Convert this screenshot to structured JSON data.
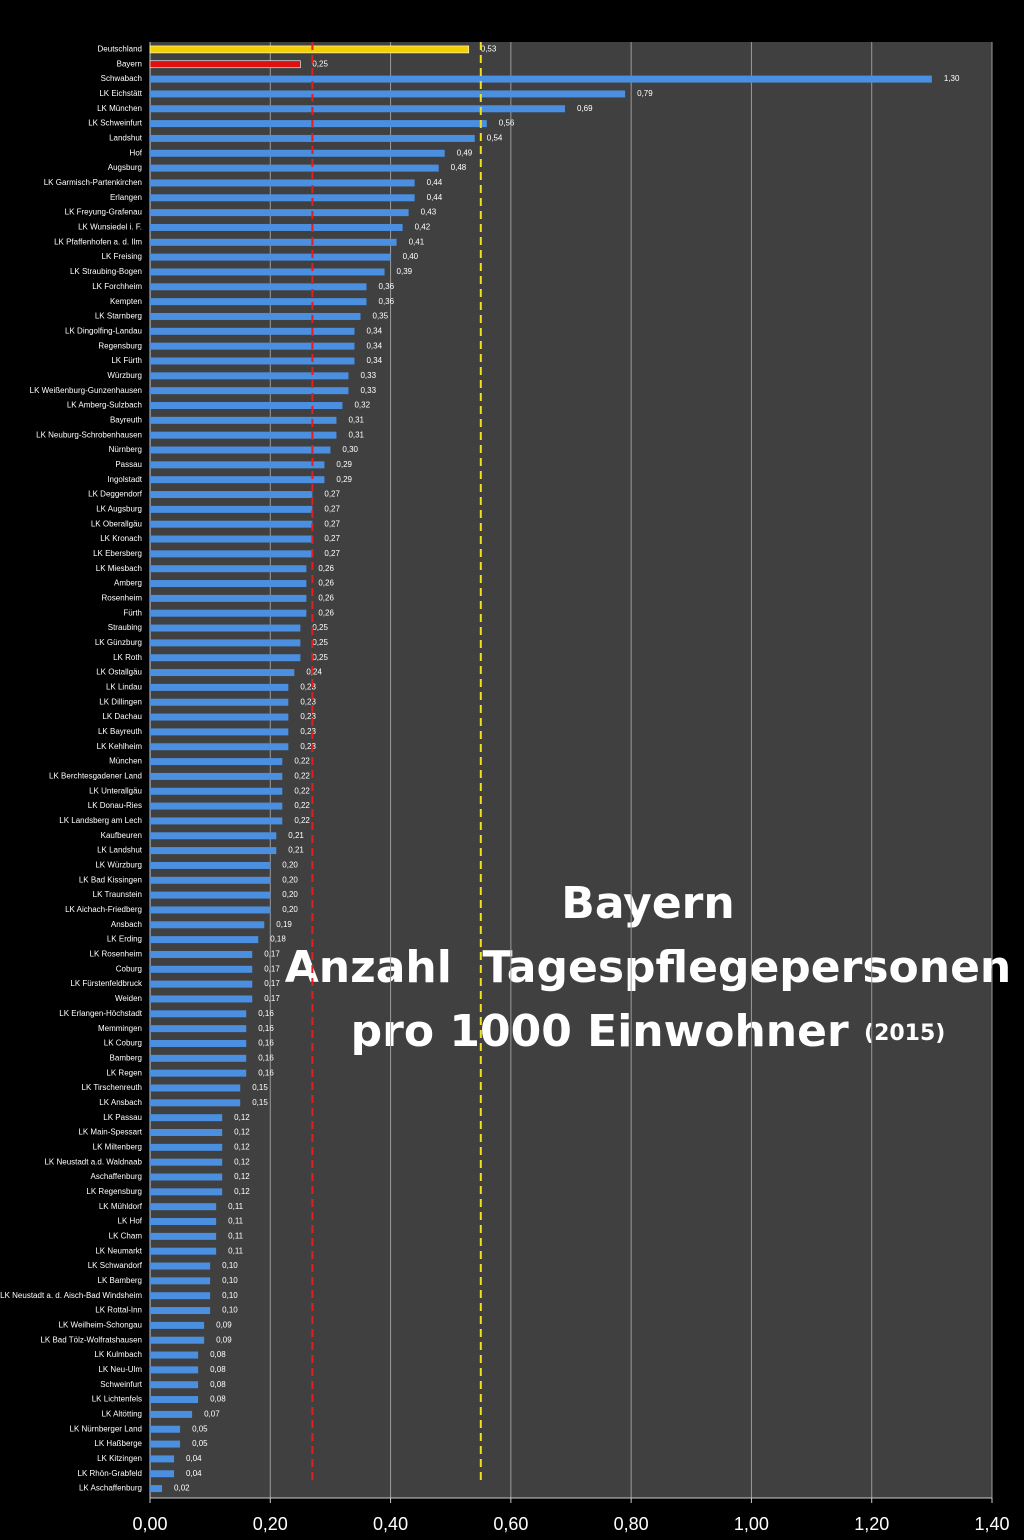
{
  "chart_data": {
    "type": "hbar",
    "title": [
      "Bayern",
      "Anzahl  Tagespflegepersonen",
      "pro 1000 Einwohner"
    ],
    "subtitle": "(2015)",
    "categories": [
      "Deutschland",
      "Bayern",
      "Schwabach",
      "LK Eichstätt",
      "LK München",
      "LK Schweinfurt",
      "Landshut",
      "Hof",
      "Augsburg",
      "LK Garmisch-Partenkirchen",
      "Erlangen",
      "LK Freyung-Grafenau",
      "LK Wunsiedel i. F.",
      "LK Pfaffenhofen a. d. Ilm",
      "LK Freising",
      "LK Straubing-Bogen",
      "LK Forchheim",
      "Kempten",
      "LK Starnberg",
      "LK Dingolfing-Landau",
      "Regensburg",
      "LK Fürth",
      "Würzburg",
      "LK Weißenburg-Gunzenhausen",
      "LK Amberg-Sulzbach",
      "Bayreuth",
      "LK Neuburg-Schrobenhausen",
      "Nürnberg",
      "Passau",
      "Ingolstadt",
      "LK Deggendorf",
      "LK Augsburg",
      "LK Oberallgäu",
      "LK Kronach",
      "LK Ebersberg",
      "LK Miesbach",
      "Amberg",
      "Rosenheim",
      "Fürth",
      "Straubing",
      "LK Günzburg",
      "LK Roth",
      "LK Ostallgäu",
      "LK Lindau",
      "LK Dillingen",
      "LK Dachau",
      "LK Bayreuth",
      "LK Kehlheim",
      "München",
      "LK Berchtesgadener Land",
      "LK Unterallgäu",
      "LK Donau-Ries",
      "LK Landsberg am Lech",
      "Kaufbeuren",
      "LK Landshut",
      "LK Würzburg",
      "LK Bad Kissingen",
      "LK Traunstein",
      "LK Aichach-Friedberg",
      "Ansbach",
      "LK Erding",
      "LK Rosenheim",
      "Coburg",
      "LK Fürstenfeldbruck",
      "Weiden",
      "LK Erlangen-Höchstadt",
      "Memmingen",
      "LK Coburg",
      "Bamberg",
      "LK Regen",
      "LK Tirschenreuth",
      "LK Ansbach",
      "LK Passau",
      "LK Main-Spessart",
      "LK Miltenberg",
      "LK Neustadt a.d. Waldnaab",
      "Aschaffenburg",
      "LK Regensburg",
      "LK Mühldorf",
      "LK Hof",
      "LK Cham",
      "LK Neumarkt",
      "LK Schwandorf",
      "LK Bamberg",
      "LK Neustadt a. d. Aisch-Bad Windsheim",
      "LK  Rottal-Inn",
      "LK Weilheim-Schongau",
      "LK Bad Tölz-Wolfratshausen",
      "LK Kulmbach",
      "LK Neu-Ulm",
      "Schweinfurt",
      "LK Lichtenfels",
      "LK Altötting",
      "LK Nürnberger Land",
      "LK Haßberge",
      "LK Kitzingen",
      "LK Rhön-Grabfeld",
      "LK Aschaffenburg"
    ],
    "values": [
      0.53,
      0.25,
      1.3,
      0.79,
      0.69,
      0.56,
      0.54,
      0.49,
      0.48,
      0.44,
      0.44,
      0.43,
      0.42,
      0.41,
      0.4,
      0.39,
      0.36,
      0.36,
      0.35,
      0.34,
      0.34,
      0.34,
      0.33,
      0.33,
      0.32,
      0.31,
      0.31,
      0.3,
      0.29,
      0.29,
      0.27,
      0.27,
      0.27,
      0.27,
      0.27,
      0.26,
      0.26,
      0.26,
      0.26,
      0.25,
      0.25,
      0.25,
      0.24,
      0.23,
      0.23,
      0.23,
      0.23,
      0.23,
      0.22,
      0.22,
      0.22,
      0.22,
      0.22,
      0.21,
      0.21,
      0.2,
      0.2,
      0.2,
      0.2,
      0.19,
      0.18,
      0.17,
      0.17,
      0.17,
      0.17,
      0.16,
      0.16,
      0.16,
      0.16,
      0.16,
      0.15,
      0.15,
      0.12,
      0.12,
      0.12,
      0.12,
      0.12,
      0.12,
      0.11,
      0.11,
      0.11,
      0.11,
      0.1,
      0.1,
      0.1,
      0.1,
      0.09,
      0.09,
      0.08,
      0.08,
      0.08,
      0.08,
      0.07,
      0.05,
      0.05,
      0.04,
      0.04,
      0.02
    ],
    "value_labels": [
      "0,53",
      "0,25",
      "1,30",
      "0,79",
      "0,69",
      "0,56",
      "0,54",
      "0,49",
      "0,48",
      "0,44",
      "0,44",
      "0,43",
      "0,42",
      "0,41",
      "0,40",
      "0,39",
      "0,36",
      "0,36",
      "0,35",
      "0,34",
      "0,34",
      "0,34",
      "0,33",
      "0,33",
      "0,32",
      "0,31",
      "0,31",
      "0,30",
      "0,29",
      "0,29",
      "0,27",
      "0,27",
      "0,27",
      "0,27",
      "0,27",
      "0,26",
      "0,26",
      "0,26",
      "0,26",
      "0,25",
      "0,25",
      "0,25",
      "0,24",
      "0,23",
      "0,23",
      "0,23",
      "0,23",
      "0,23",
      "0,22",
      "0,22",
      "0,22",
      "0,22",
      "0,22",
      "0,21",
      "0,21",
      "0,20",
      "0,20",
      "0,20",
      "0,20",
      "0,19",
      "0,18",
      "0,17",
      "0,17",
      "0,17",
      "0,17",
      "0,16",
      "0,16",
      "0,16",
      "0,16",
      "0,16",
      "0,15",
      "0,15",
      "0,12",
      "0,12",
      "0,12",
      "0,12",
      "0,12",
      "0,12",
      "0,11",
      "0,11",
      "0,11",
      "0,11",
      "0,10",
      "0,10",
      "0,10",
      "0,10",
      "0,09",
      "0,09",
      "0,08",
      "0,08",
      "0,08",
      "0,08",
      "0,07",
      "0,05",
      "0,05",
      "0,04",
      "0,04",
      "0,02"
    ],
    "colors": [
      "#f5d000",
      "#e01010",
      "#4a8fe0",
      "#4a8fe0",
      "#4a8fe0",
      "#4a8fe0",
      "#4a8fe0",
      "#4a8fe0",
      "#4a8fe0",
      "#4a8fe0",
      "#4a8fe0",
      "#4a8fe0",
      "#4a8fe0",
      "#4a8fe0",
      "#4a8fe0",
      "#4a8fe0",
      "#4a8fe0",
      "#4a8fe0",
      "#4a8fe0",
      "#4a8fe0",
      "#4a8fe0",
      "#4a8fe0",
      "#4a8fe0",
      "#4a8fe0",
      "#4a8fe0",
      "#4a8fe0",
      "#4a8fe0",
      "#4a8fe0",
      "#4a8fe0",
      "#4a8fe0",
      "#4a8fe0",
      "#4a8fe0",
      "#4a8fe0",
      "#4a8fe0",
      "#4a8fe0",
      "#4a8fe0",
      "#4a8fe0",
      "#4a8fe0",
      "#4a8fe0",
      "#4a8fe0",
      "#4a8fe0",
      "#4a8fe0",
      "#4a8fe0",
      "#4a8fe0",
      "#4a8fe0",
      "#4a8fe0",
      "#4a8fe0",
      "#4a8fe0",
      "#4a8fe0",
      "#4a8fe0",
      "#4a8fe0",
      "#4a8fe0",
      "#4a8fe0",
      "#4a8fe0",
      "#4a8fe0",
      "#4a8fe0",
      "#4a8fe0",
      "#4a8fe0",
      "#4a8fe0",
      "#4a8fe0",
      "#4a8fe0",
      "#4a8fe0",
      "#4a8fe0",
      "#4a8fe0",
      "#4a8fe0",
      "#4a8fe0",
      "#4a8fe0",
      "#4a8fe0",
      "#4a8fe0",
      "#4a8fe0",
      "#4a8fe0",
      "#4a8fe0",
      "#4a8fe0",
      "#4a8fe0",
      "#4a8fe0",
      "#4a8fe0",
      "#4a8fe0",
      "#4a8fe0",
      "#4a8fe0",
      "#4a8fe0",
      "#4a8fe0",
      "#4a8fe0",
      "#4a8fe0",
      "#4a8fe0",
      "#4a8fe0",
      "#4a8fe0",
      "#4a8fe0",
      "#4a8fe0",
      "#4a8fe0",
      "#4a8fe0",
      "#4a8fe0",
      "#4a8fe0",
      "#4a8fe0",
      "#4a8fe0",
      "#4a8fe0",
      "#4a8fe0",
      "#4a8fe0",
      "#4a8fe0"
    ],
    "reference_lines": [
      {
        "value": 0.55,
        "color": "#f0e020"
      },
      {
        "value": 0.27,
        "color": "#e02020"
      }
    ],
    "xlim": [
      0,
      1.4
    ],
    "xticks": [
      {
        "value": 0,
        "label": "0,00"
      },
      {
        "value": 0.2,
        "label": "0,20"
      },
      {
        "value": 0.4,
        "label": "0,40"
      },
      {
        "value": 0.6,
        "label": "0,60"
      },
      {
        "value": 0.8,
        "label": "0,80"
      },
      {
        "value": 1.0,
        "label": "1,00"
      },
      {
        "value": 1.2,
        "label": "1,20"
      },
      {
        "value": 1.4,
        "label": "1,40"
      }
    ],
    "grid": true
  }
}
